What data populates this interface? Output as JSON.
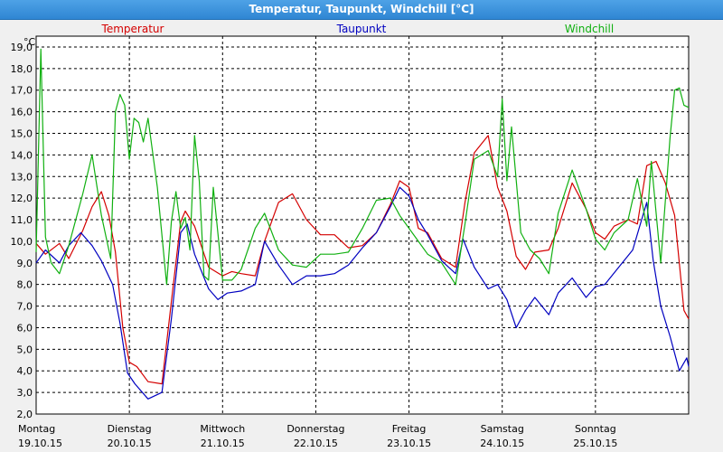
{
  "window": {
    "title": "Temperatur, Taupunkt, Windchill [°C]"
  },
  "chart_data": {
    "type": "line",
    "title": "Temperatur, Taupunkt, Windchill [°C]",
    "ylabel": "°C",
    "ylim": [
      2.0,
      19.5
    ],
    "yticks": [
      "2,0",
      "3,0",
      "4,0",
      "5,0",
      "6,0",
      "7,0",
      "8,0",
      "9,0",
      "10,0",
      "11,0",
      "12,0",
      "13,0",
      "14,0",
      "15,0",
      "16,0",
      "17,0",
      "18,0",
      "19,0"
    ],
    "ytick_values": [
      2,
      3,
      4,
      5,
      6,
      7,
      8,
      9,
      10,
      11,
      12,
      13,
      14,
      15,
      16,
      17,
      18,
      19
    ],
    "xlim": [
      0,
      7
    ],
    "x_days": [
      {
        "day": "Montag",
        "date": "19.10.15"
      },
      {
        "day": "Dienstag",
        "date": "20.10.15"
      },
      {
        "day": "Mittwoch",
        "date": "21.10.15"
      },
      {
        "day": "Donnerstag",
        "date": "22.10.15"
      },
      {
        "day": "Freitag",
        "date": "23.10.15"
      },
      {
        "day": "Samstag",
        "date": "24.10.15"
      },
      {
        "day": "Sonntag",
        "date": "25.10.15"
      }
    ],
    "grid": true,
    "legend_position": "top",
    "series": [
      {
        "name": "Temperatur",
        "color": "#d40000",
        "x": [
          0.0,
          0.1,
          0.25,
          0.35,
          0.5,
          0.6,
          0.7,
          0.78,
          0.85,
          0.93,
          1.0,
          1.08,
          1.2,
          1.35,
          1.45,
          1.55,
          1.6,
          1.7,
          1.85,
          2.0,
          2.1,
          2.2,
          2.35,
          2.45,
          2.6,
          2.75,
          2.9,
          3.05,
          3.2,
          3.35,
          3.5,
          3.65,
          3.8,
          3.9,
          4.0,
          4.1,
          4.2,
          4.35,
          4.5,
          4.6,
          4.7,
          4.85,
          4.95,
          5.05,
          5.15,
          5.25,
          5.35,
          5.5,
          5.6,
          5.75,
          5.9,
          6.0,
          6.1,
          6.2,
          6.35,
          6.45,
          6.55,
          6.65,
          6.75,
          6.85,
          6.95,
          7.0
        ],
        "y": [
          9.9,
          9.4,
          9.9,
          9.2,
          10.5,
          11.6,
          12.3,
          11.2,
          9.5,
          6.0,
          4.4,
          4.2,
          3.5,
          3.4,
          7.2,
          10.9,
          11.4,
          10.7,
          8.8,
          8.4,
          8.6,
          8.5,
          8.4,
          10.0,
          11.8,
          12.2,
          11.0,
          10.3,
          10.3,
          9.7,
          9.8,
          10.4,
          11.7,
          12.8,
          12.5,
          10.6,
          10.4,
          9.2,
          8.8,
          11.8,
          14.1,
          14.9,
          12.5,
          11.4,
          9.3,
          8.7,
          9.5,
          9.6,
          10.6,
          12.7,
          11.5,
          10.4,
          10.1,
          10.7,
          11.0,
          10.8,
          13.5,
          13.7,
          12.7,
          11.2,
          6.8,
          6.4
        ]
      },
      {
        "name": "Taupunkt",
        "color": "#0000c0",
        "x": [
          0.0,
          0.1,
          0.25,
          0.35,
          0.48,
          0.6,
          0.7,
          0.82,
          0.9,
          0.98,
          1.06,
          1.2,
          1.35,
          1.45,
          1.55,
          1.62,
          1.7,
          1.85,
          1.95,
          2.05,
          2.2,
          2.35,
          2.45,
          2.6,
          2.75,
          2.9,
          3.05,
          3.2,
          3.35,
          3.5,
          3.65,
          3.8,
          3.9,
          4.0,
          4.1,
          4.2,
          4.35,
          4.5,
          4.58,
          4.7,
          4.85,
          4.95,
          5.05,
          5.15,
          5.25,
          5.35,
          5.5,
          5.6,
          5.75,
          5.9,
          6.0,
          6.1,
          6.25,
          6.4,
          6.55,
          6.62,
          6.7,
          6.8,
          6.9,
          6.98,
          7.0
        ],
        "y": [
          9.0,
          9.6,
          9.0,
          9.8,
          10.4,
          9.8,
          9.1,
          8.0,
          6.2,
          3.9,
          3.4,
          2.7,
          3.0,
          6.4,
          10.4,
          10.8,
          9.4,
          7.8,
          7.3,
          7.6,
          7.7,
          8.0,
          10.0,
          8.9,
          8.0,
          8.4,
          8.4,
          8.5,
          8.9,
          9.7,
          10.4,
          11.6,
          12.5,
          12.1,
          11.0,
          10.3,
          9.1,
          8.5,
          10.1,
          8.8,
          7.8,
          8.0,
          7.3,
          6.0,
          6.8,
          7.4,
          6.6,
          7.6,
          8.3,
          7.4,
          7.9,
          8.0,
          8.8,
          9.6,
          11.8,
          9.1,
          7.0,
          5.6,
          4.0,
          4.6,
          4.2
        ]
      },
      {
        "name": "Windchill",
        "color": "#10b010",
        "x": [
          0.0,
          0.05,
          0.1,
          0.16,
          0.25,
          0.35,
          0.5,
          0.6,
          0.7,
          0.8,
          0.85,
          0.9,
          0.95,
          1.0,
          1.05,
          1.1,
          1.15,
          1.2,
          1.3,
          1.4,
          1.45,
          1.5,
          1.55,
          1.6,
          1.65,
          1.7,
          1.75,
          1.8,
          1.85,
          1.9,
          2.0,
          2.1,
          2.2,
          2.35,
          2.45,
          2.6,
          2.75,
          2.9,
          3.05,
          3.2,
          3.35,
          3.5,
          3.65,
          3.8,
          3.9,
          4.0,
          4.1,
          4.2,
          4.35,
          4.5,
          4.6,
          4.7,
          4.85,
          4.95,
          5.0,
          5.05,
          5.1,
          5.2,
          5.3,
          5.4,
          5.5,
          5.6,
          5.75,
          5.9,
          6.0,
          6.1,
          6.2,
          6.35,
          6.45,
          6.55,
          6.6,
          6.7,
          6.8,
          6.85,
          6.9,
          6.95,
          7.0
        ],
        "y": [
          9.5,
          18.9,
          10.2,
          9.0,
          8.5,
          9.8,
          12.2,
          14.0,
          11.2,
          9.2,
          16.0,
          16.8,
          16.3,
          13.8,
          15.7,
          15.5,
          14.6,
          15.7,
          12.5,
          8.0,
          10.9,
          12.3,
          10.6,
          11.1,
          9.6,
          14.9,
          12.8,
          8.4,
          8.2,
          12.5,
          8.2,
          8.2,
          8.7,
          10.6,
          11.3,
          9.6,
          8.9,
          8.8,
          9.4,
          9.4,
          9.5,
          10.6,
          11.9,
          12.0,
          11.2,
          10.6,
          10.0,
          9.4,
          9.0,
          8.0,
          10.8,
          13.8,
          14.2,
          13.0,
          16.6,
          12.8,
          15.3,
          10.4,
          9.6,
          9.2,
          8.5,
          11.3,
          13.3,
          11.5,
          10.1,
          9.6,
          10.4,
          11.0,
          12.9,
          10.7,
          13.7,
          9.0,
          14.8,
          17.0,
          17.1,
          16.3,
          16.2
        ]
      }
    ]
  }
}
